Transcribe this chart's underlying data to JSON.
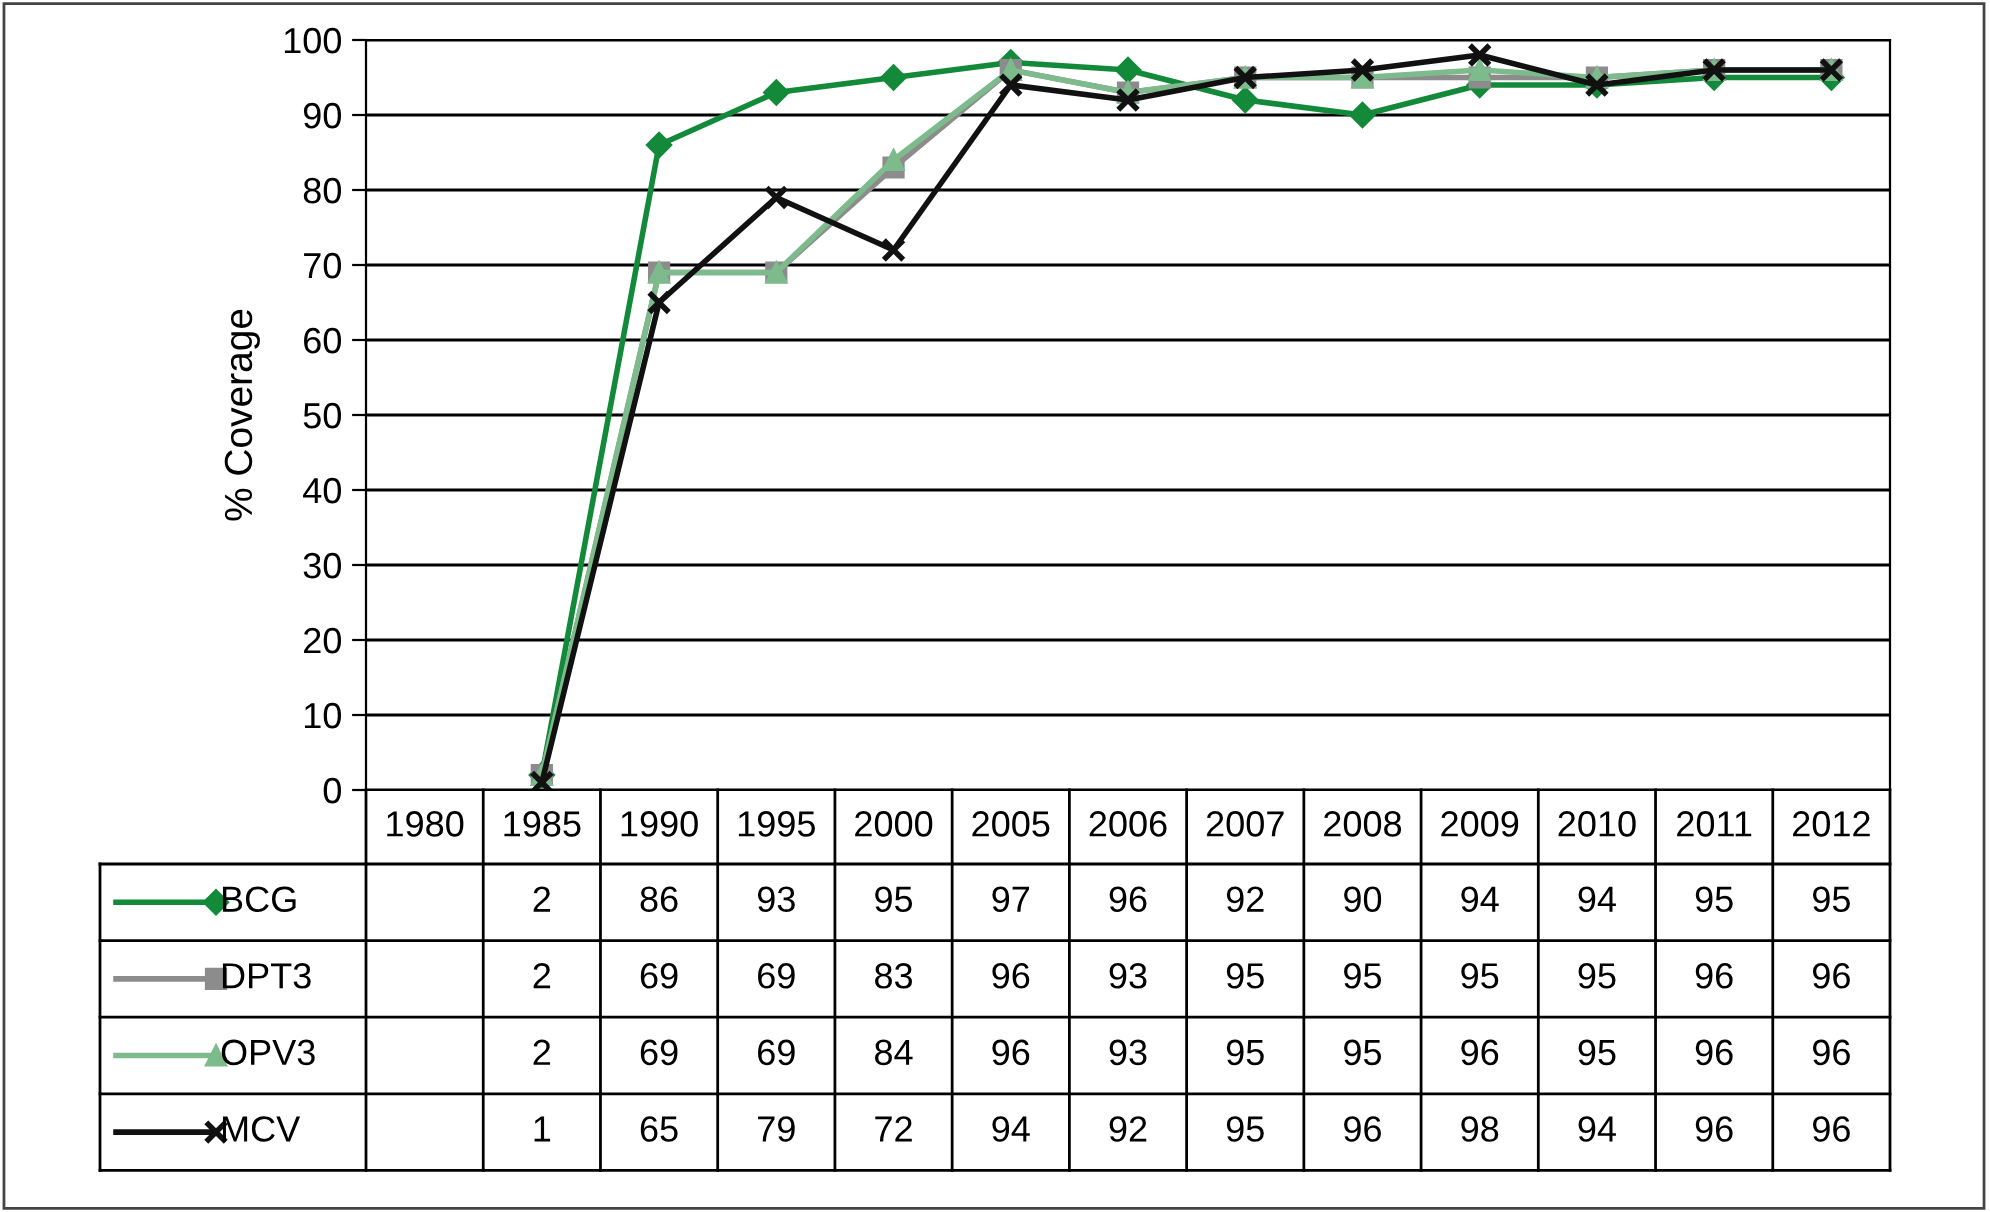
{
  "chart_data": {
    "type": "line",
    "ylabel": "% Coverage",
    "categories": [
      "1980",
      "1985",
      "1990",
      "1995",
      "2000",
      "2005",
      "2006",
      "2007",
      "2008",
      "2009",
      "2010",
      "2011",
      "2012"
    ],
    "series": [
      {
        "name": "BCG",
        "color": "#138a3a",
        "marker": "diamond",
        "values": [
          null,
          2,
          86,
          93,
          95,
          97,
          96,
          92,
          90,
          94,
          94,
          95,
          95
        ]
      },
      {
        "name": "DPT3",
        "color": "#8c8c8c",
        "marker": "square",
        "values": [
          null,
          2,
          69,
          69,
          83,
          96,
          93,
          95,
          95,
          95,
          95,
          96,
          96
        ]
      },
      {
        "name": "OPV3",
        "color": "#7dbb8c",
        "marker": "triangle",
        "values": [
          null,
          2,
          69,
          69,
          84,
          96,
          93,
          95,
          95,
          96,
          95,
          96,
          96
        ]
      },
      {
        "name": "MCV",
        "color": "#111111",
        "marker": "cross",
        "values": [
          null,
          1,
          65,
          79,
          72,
          94,
          92,
          95,
          96,
          98,
          94,
          96,
          96
        ]
      }
    ],
    "ylim": [
      0,
      100
    ],
    "yticks": [
      0,
      10,
      20,
      30,
      40,
      50,
      60,
      70,
      80,
      90,
      100
    ],
    "grid": "y",
    "data_labels": true,
    "legend": "bottom"
  }
}
